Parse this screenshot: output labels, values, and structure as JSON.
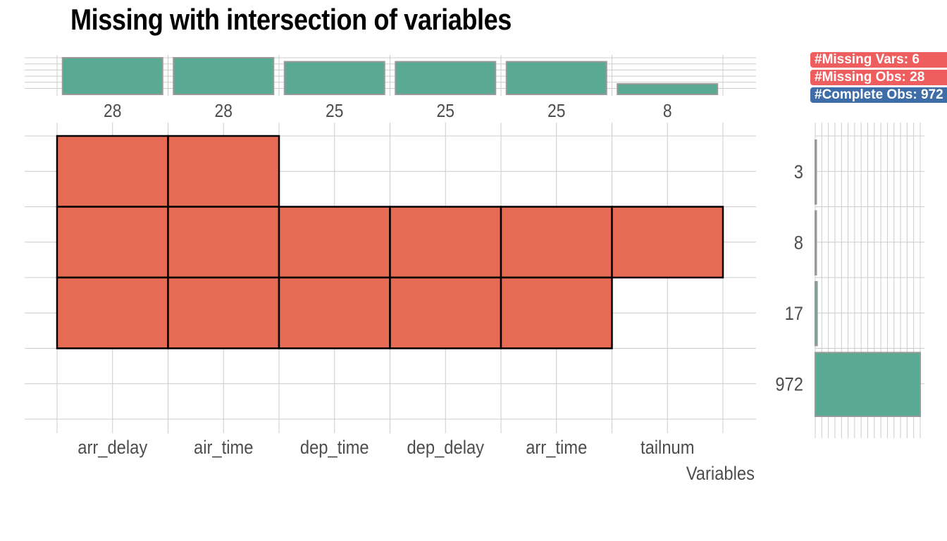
{
  "title": "Missing with intersection of variables",
  "badges": {
    "missing_vars": "#Missing Vars: 6",
    "missing_obs": "#Missing Obs: 28",
    "complete_obs": "#Complete Obs: 972"
  },
  "colors": {
    "missing_cell": "#E76B54",
    "bar_fill": "#5AA992",
    "bar_stroke": "#999999",
    "badge_red": "#EF5E5E",
    "badge_blue": "#3E6DA8",
    "grid": "#cccccc"
  },
  "chart_data": [
    {
      "type": "bar",
      "name": "variable-missing-counts",
      "categories": [
        "arr_delay",
        "air_time",
        "dep_time",
        "dep_delay",
        "arr_time",
        "tailnum"
      ],
      "values": [
        28,
        28,
        25,
        25,
        25,
        8
      ],
      "value_labels": [
        "28",
        "28",
        "25",
        "25",
        "25",
        "8"
      ],
      "ylim": [
        0,
        28
      ]
    },
    {
      "type": "heatmap",
      "name": "missing-intersection-matrix",
      "x": [
        "arr_delay",
        "air_time",
        "dep_time",
        "dep_delay",
        "arr_time",
        "tailnum"
      ],
      "xlabel": "Variables",
      "rows": [
        {
          "label": "3",
          "missing": [
            1,
            1,
            0,
            0,
            0,
            0
          ]
        },
        {
          "label": "8",
          "missing": [
            1,
            1,
            1,
            1,
            1,
            1
          ]
        },
        {
          "label": "17",
          "missing": [
            1,
            1,
            1,
            1,
            1,
            0
          ]
        },
        {
          "label": "972",
          "missing": [
            0,
            0,
            0,
            0,
            0,
            0
          ]
        }
      ]
    },
    {
      "type": "bar",
      "orientation": "horizontal",
      "name": "intersection-sizes",
      "categories": [
        "3",
        "8",
        "17",
        "972"
      ],
      "values": [
        3,
        8,
        17,
        972
      ],
      "xlim": [
        0,
        972
      ]
    }
  ]
}
